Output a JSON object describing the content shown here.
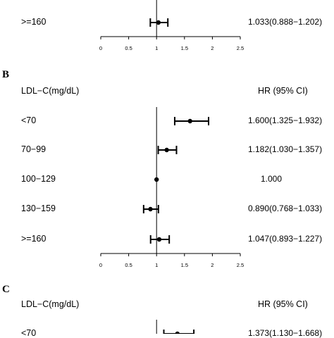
{
  "chart_data": {
    "type": "forest",
    "x_ticks": [
      "0",
      "0.5",
      "1",
      "1.5",
      "2",
      "2.5"
    ],
    "xlim": [
      0,
      2.5
    ],
    "reference_line": 1,
    "panels": [
      {
        "letter": "",
        "header": {
          "left": "",
          "right": ""
        },
        "rows": [
          {
            "label": ">=160",
            "hr": 1.033,
            "lower": 0.888,
            "upper": 1.202,
            "text": "1.033(0.888−1.202)"
          }
        ]
      },
      {
        "letter": "B",
        "header": {
          "left": "LDL−C(mg/dL)",
          "right": "HR (95% CI)"
        },
        "rows": [
          {
            "label": "<70",
            "hr": 1.6,
            "lower": 1.325,
            "upper": 1.932,
            "text": "1.600(1.325−1.932)"
          },
          {
            "label": "70−99",
            "hr": 1.182,
            "lower": 1.03,
            "upper": 1.357,
            "text": "1.182(1.030−1.357)"
          },
          {
            "label": "100−129",
            "hr": 1.0,
            "lower": 1.0,
            "upper": 1.0,
            "text": "1.000"
          },
          {
            "label": "130−159",
            "hr": 0.89,
            "lower": 0.768,
            "upper": 1.033,
            "text": "0.890(0.768−1.033)"
          },
          {
            "label": ">=160",
            "hr": 1.047,
            "lower": 0.893,
            "upper": 1.227,
            "text": "1.047(0.893−1.227)"
          }
        ]
      },
      {
        "letter": "C",
        "header": {
          "left": "LDL−C(mg/dL)",
          "right": "HR (95% CI)"
        },
        "rows": [
          {
            "label": "<70",
            "hr": 1.373,
            "lower": 1.13,
            "upper": 1.668,
            "text": "1.373(1.130−1.668)"
          }
        ]
      }
    ]
  }
}
